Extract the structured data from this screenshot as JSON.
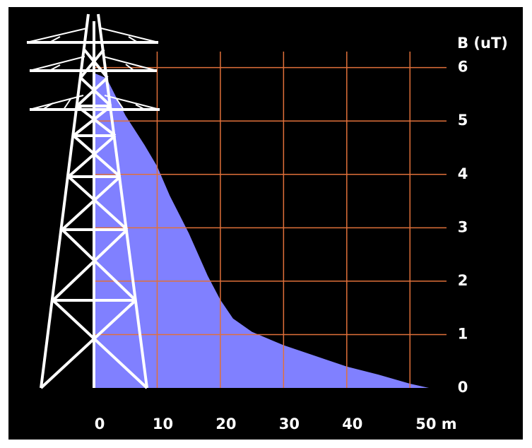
{
  "chart_data": {
    "type": "area",
    "title": "B (uT)",
    "x": [
      0,
      2,
      5,
      8,
      10,
      12,
      15,
      18,
      20,
      22,
      25,
      30,
      35,
      40,
      45,
      50,
      53
    ],
    "values": [
      5.9,
      5.8,
      5.1,
      4.55,
      4.15,
      3.6,
      2.9,
      2.1,
      1.65,
      1.3,
      1.05,
      0.8,
      0.6,
      0.4,
      0.25,
      0.08,
      0
    ],
    "color": "#8080ff",
    "xlim": [
      0,
      55
    ],
    "ylim": [
      0,
      6.3
    ],
    "xticks": [
      0,
      10,
      20,
      30,
      40,
      {
        "value": 50,
        "label": "50 m"
      }
    ],
    "yticks": [
      0,
      1,
      2,
      3,
      4,
      5,
      6
    ],
    "grid": true,
    "grid_color": "#e0703a"
  }
}
